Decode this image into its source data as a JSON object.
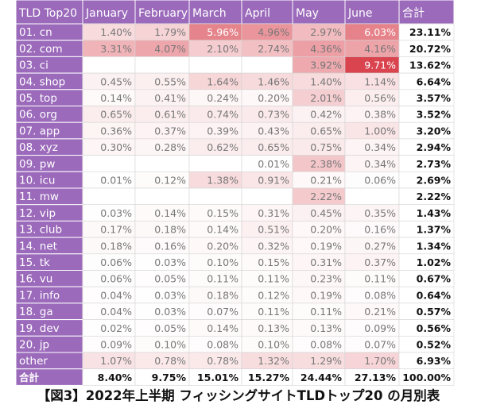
{
  "chart_data": {
    "type": "heatmap",
    "corner_label": "TLD Top20",
    "months": [
      "January",
      "February",
      "March",
      "April",
      "May",
      "June"
    ],
    "total_label": "合計",
    "rows": [
      {
        "tld": "01. cn",
        "values": [
          "1.40%",
          "1.79%",
          "5.96%",
          "4.96%",
          "2.97%",
          "6.03%"
        ],
        "total": "23.11%"
      },
      {
        "tld": "02. com",
        "values": [
          "3.31%",
          "4.07%",
          "2.10%",
          "2.74%",
          "4.36%",
          "4.16%"
        ],
        "total": "20.72%"
      },
      {
        "tld": "03. ci",
        "values": [
          "",
          "",
          "",
          "",
          "3.92%",
          "9.71%"
        ],
        "total": "13.62%"
      },
      {
        "tld": "04. shop",
        "values": [
          "0.45%",
          "0.55%",
          "1.64%",
          "1.46%",
          "1.40%",
          "1.14%"
        ],
        "total": "6.64%"
      },
      {
        "tld": "05. top",
        "values": [
          "0.14%",
          "0.41%",
          "0.24%",
          "0.20%",
          "2.01%",
          "0.56%"
        ],
        "total": "3.57%"
      },
      {
        "tld": "06. org",
        "values": [
          "0.65%",
          "0.61%",
          "0.74%",
          "0.73%",
          "0.42%",
          "0.38%"
        ],
        "total": "3.52%"
      },
      {
        "tld": "07. app",
        "values": [
          "0.36%",
          "0.37%",
          "0.39%",
          "0.43%",
          "0.65%",
          "1.00%"
        ],
        "total": "3.20%"
      },
      {
        "tld": "08. xyz",
        "values": [
          "0.30%",
          "0.28%",
          "0.62%",
          "0.65%",
          "0.75%",
          "0.34%"
        ],
        "total": "2.94%"
      },
      {
        "tld": "09. pw",
        "values": [
          "",
          "",
          "",
          "0.01%",
          "2.38%",
          "0.34%"
        ],
        "total": "2.73%"
      },
      {
        "tld": "10. icu",
        "values": [
          "0.01%",
          "0.12%",
          "1.38%",
          "0.91%",
          "0.21%",
          "0.06%"
        ],
        "total": "2.69%"
      },
      {
        "tld": "11. mw",
        "values": [
          "",
          "",
          "",
          "",
          "2.22%",
          ""
        ],
        "total": "2.22%"
      },
      {
        "tld": "12. vip",
        "values": [
          "0.03%",
          "0.14%",
          "0.15%",
          "0.31%",
          "0.45%",
          "0.35%"
        ],
        "total": "1.43%"
      },
      {
        "tld": "13. club",
        "values": [
          "0.17%",
          "0.18%",
          "0.14%",
          "0.51%",
          "0.20%",
          "0.16%"
        ],
        "total": "1.37%"
      },
      {
        "tld": "14. net",
        "values": [
          "0.18%",
          "0.16%",
          "0.20%",
          "0.32%",
          "0.19%",
          "0.27%"
        ],
        "total": "1.34%"
      },
      {
        "tld": "15. tk",
        "values": [
          "0.06%",
          "0.03%",
          "0.10%",
          "0.15%",
          "0.31%",
          "0.37%"
        ],
        "total": "1.02%"
      },
      {
        "tld": "16. vu",
        "values": [
          "0.06%",
          "0.05%",
          "0.11%",
          "0.11%",
          "0.23%",
          "0.11%"
        ],
        "total": "0.67%"
      },
      {
        "tld": "17. info",
        "values": [
          "0.04%",
          "0.03%",
          "0.18%",
          "0.12%",
          "0.19%",
          "0.08%"
        ],
        "total": "0.64%"
      },
      {
        "tld": "18. ga",
        "values": [
          "0.04%",
          "0.03%",
          "0.07%",
          "0.11%",
          "0.11%",
          "0.21%"
        ],
        "total": "0.57%"
      },
      {
        "tld": "19. dev",
        "values": [
          "0.02%",
          "0.05%",
          "0.14%",
          "0.13%",
          "0.13%",
          "0.09%"
        ],
        "total": "0.56%"
      },
      {
        "tld": "20. jp",
        "values": [
          "0.09%",
          "0.10%",
          "0.08%",
          "0.10%",
          "0.08%",
          "0.07%"
        ],
        "total": "0.52%"
      },
      {
        "tld": "other",
        "values": [
          "1.07%",
          "0.78%",
          "0.78%",
          "1.32%",
          "1.29%",
          "1.70%"
        ],
        "total": "6.93%"
      }
    ],
    "totals_row": {
      "label": "合計",
      "values": [
        "8.40%",
        "9.75%",
        "15.01%",
        "15.27%",
        "24.44%",
        "27.13%"
      ],
      "total": "100.00%"
    },
    "colors": {
      "header_fill": "#9b6abb",
      "header_border": "#ffffff",
      "grid_line": "#d4d4d4",
      "heat_low": "#ffffff",
      "heat_high": "#d9444f",
      "cell_text": "#777777",
      "total_text": "#111111"
    }
  },
  "caption": "【図3】2022年上半期 フィッシングサイトTLDトップ20 の月別表"
}
